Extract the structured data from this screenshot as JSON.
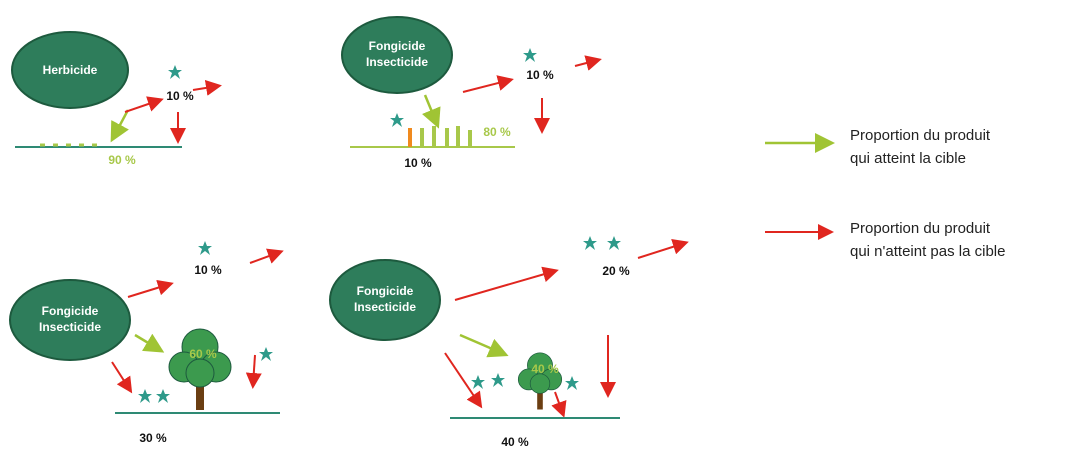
{
  "panels": [
    {
      "label": [
        "Herbicide"
      ],
      "lost": "10 %",
      "target": "90 %"
    },
    {
      "label": [
        "Fongicide",
        "Insecticide"
      ],
      "lost": "10 %",
      "target": "80 %",
      "soil": "10 %"
    },
    {
      "label": [
        "Fongicide",
        "Insecticide"
      ],
      "lost": "10 %",
      "target": "60 %",
      "soil": "30 %"
    },
    {
      "label": [
        "Fongicide",
        "Insecticide"
      ],
      "lost": "20 %",
      "target": "40 %",
      "soil": "40 %"
    }
  ],
  "legend": [
    {
      "lines": [
        "Proportion du produit",
        "qui atteint la cible"
      ]
    },
    {
      "lines": [
        "Proportion du produit",
        "qui n'atteint pas la cible"
      ]
    }
  ]
}
